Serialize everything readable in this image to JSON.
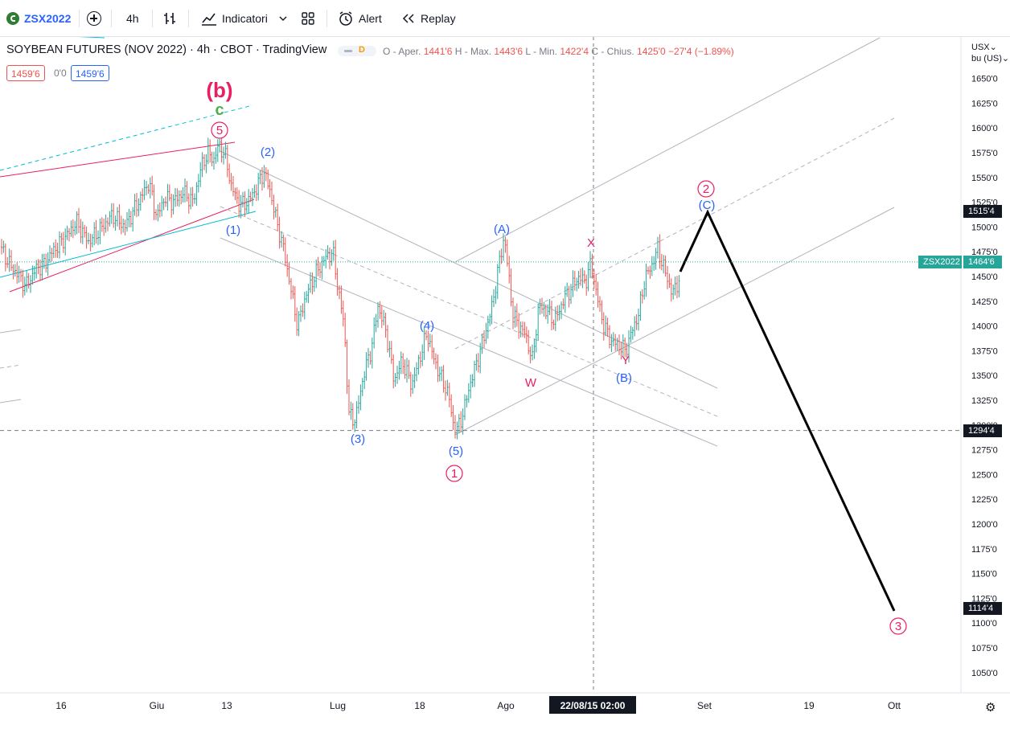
{
  "toolbar": {
    "symbol": "ZSX2022",
    "interval": "4h",
    "indicators_label": "Indicatori",
    "alert_label": "Alert",
    "replay_label": "Replay"
  },
  "legend": {
    "title": "SOYBEAN FUTURES (NOV 2022) · 4h · CBOT · TradingView",
    "flag": "D",
    "ohlc": {
      "open_label": "O - Aper.",
      "open": "1441'6",
      "high_label": "H - Max.",
      "high": "1443'6",
      "low_label": "L - Min.",
      "low": "1422'4",
      "close_label": "C - Chius.",
      "close": "1425'0",
      "change": "−27'4 (−1.89%)"
    },
    "bid": "1459'6",
    "spread": "0'0",
    "ask": "1459'6"
  },
  "currency": {
    "line1": "USX⌄",
    "line2": "bu (US)⌄"
  },
  "colors": {
    "up": "#26a69a",
    "down": "#ef5350",
    "blue": "#2962ff",
    "pink": "#e91e63",
    "green": "#4caf50",
    "teal": "#00bcd4",
    "accent_tag": "#26a69a"
  },
  "chart_data": {
    "type": "candlestick",
    "title": "SOYBEAN FUTURES (NOV 2022) · 4h · CBOT · TradingView",
    "y_ticks": [
      1650,
      1625,
      1600,
      1575,
      1550,
      1525,
      1500,
      1475,
      1450,
      1425,
      1400,
      1375,
      1350,
      1325,
      1300,
      1275,
      1250,
      1225,
      1200,
      1175,
      1150,
      1125,
      1100,
      1075,
      1050
    ],
    "y_tick_labels": [
      "1650'0",
      "1625'0",
      "1600'0",
      "1575'0",
      "1550'0",
      "1525'0",
      "1500'0",
      "1475'0",
      "1450'0",
      "1425'0",
      "1400'0",
      "1375'0",
      "1350'0",
      "1325'0",
      "1300'0",
      "1275'0",
      "1250'0",
      "1225'0",
      "1200'0",
      "1175'0",
      "1150'0",
      "1125'0",
      "1100'0",
      "1075'0",
      "1050'0"
    ],
    "ylim": [
      1030,
      1665
    ],
    "x_tick_labels": [
      "16",
      "Giu",
      "13",
      "Lug",
      "18",
      "Ago",
      "Set",
      "19",
      "Ott"
    ],
    "crosshair_time": "22/08/15  02:00",
    "price_labels": [
      {
        "label": "1515'4",
        "value": 1515.5,
        "style": "dark"
      },
      {
        "symbol": "ZSX2022",
        "label": "1464'6",
        "value": 1464.75,
        "style": "accent"
      },
      {
        "label": "1294'4",
        "value": 1294.5,
        "style": "dark"
      },
      {
        "label": "1114'4",
        "value": 1114.5,
        "style": "dark"
      }
    ],
    "price_path": [
      [
        0,
        1480
      ],
      [
        12,
        1462
      ],
      [
        22,
        1452
      ],
      [
        32,
        1440
      ],
      [
        45,
        1458
      ],
      [
        55,
        1462
      ],
      [
        65,
        1475
      ],
      [
        80,
        1488
      ],
      [
        95,
        1505
      ],
      [
        110,
        1485
      ],
      [
        125,
        1498
      ],
      [
        140,
        1512
      ],
      [
        155,
        1500
      ],
      [
        170,
        1522
      ],
      [
        185,
        1545
      ],
      [
        195,
        1510
      ],
      [
        205,
        1530
      ],
      [
        215,
        1525
      ],
      [
        228,
        1535
      ],
      [
        240,
        1525
      ],
      [
        250,
        1560
      ],
      [
        258,
        1575
      ],
      [
        266,
        1568
      ],
      [
        272,
        1583
      ],
      [
        280,
        1572
      ],
      [
        288,
        1540
      ],
      [
        298,
        1522
      ],
      [
        308,
        1525
      ],
      [
        318,
        1538
      ],
      [
        328,
        1556
      ],
      [
        336,
        1536
      ],
      [
        344,
        1505
      ],
      [
        352,
        1480
      ],
      [
        360,
        1445
      ],
      [
        370,
        1400
      ],
      [
        380,
        1430
      ],
      [
        392,
        1452
      ],
      [
        404,
        1468
      ],
      [
        414,
        1475
      ],
      [
        420,
        1440
      ],
      [
        428,
        1400
      ],
      [
        434,
        1310
      ],
      [
        442,
        1305
      ],
      [
        452,
        1350
      ],
      [
        462,
        1378
      ],
      [
        470,
        1420
      ],
      [
        480,
        1395
      ],
      [
        490,
        1345
      ],
      [
        500,
        1365
      ],
      [
        512,
        1340
      ],
      [
        522,
        1368
      ],
      [
        531,
        1393
      ],
      [
        540,
        1365
      ],
      [
        550,
        1345
      ],
      [
        558,
        1330
      ],
      [
        563,
        1303
      ],
      [
        568,
        1294
      ],
      [
        576,
        1312
      ],
      [
        584,
        1340
      ],
      [
        594,
        1366
      ],
      [
        604,
        1395
      ],
      [
        612,
        1420
      ],
      [
        620,
        1460
      ],
      [
        627,
        1491
      ],
      [
        632,
        1455
      ],
      [
        638,
        1410
      ],
      [
        646,
        1400
      ],
      [
        654,
        1390
      ],
      [
        662,
        1365
      ],
      [
        670,
        1420
      ],
      [
        680,
        1415
      ],
      [
        690,
        1405
      ],
      [
        700,
        1425
      ],
      [
        710,
        1438
      ],
      [
        720,
        1450
      ],
      [
        728,
        1444
      ],
      [
        735,
        1464
      ],
      [
        742,
        1432
      ],
      [
        750,
        1402
      ],
      [
        760,
        1385
      ],
      [
        770,
        1380
      ],
      [
        778,
        1375
      ],
      [
        786,
        1395
      ],
      [
        794,
        1412
      ],
      [
        802,
        1448
      ],
      [
        810,
        1460
      ],
      [
        818,
        1478
      ],
      [
        824,
        1462
      ],
      [
        830,
        1448
      ],
      [
        836,
        1432
      ],
      [
        842,
        1443
      ],
      [
        846,
        1448
      ]
    ],
    "projection": [
      [
        846,
        1448
      ],
      [
        880,
        1515.5
      ],
      [
        1112,
        1114.5
      ]
    ],
    "wave_labels": [
      {
        "text": "(b)",
        "color": "pink",
        "xy": [
          273,
          112
        ]
      },
      {
        "text": "c",
        "color": "green",
        "xy": [
          273,
          138
        ]
      },
      {
        "text": "5",
        "color": "pink",
        "circle": true,
        "xy": [
          273,
          162
        ]
      },
      {
        "text": "(2)",
        "color": "blue",
        "xy": [
          333,
          189
        ]
      },
      {
        "text": "(1)",
        "color": "blue",
        "xy": [
          290,
          286
        ]
      },
      {
        "text": "(3)",
        "color": "blue",
        "xy": [
          445,
          546
        ]
      },
      {
        "text": "(4)",
        "color": "blue",
        "xy": [
          531,
          405
        ]
      },
      {
        "text": "(5)",
        "color": "blue",
        "xy": [
          567,
          561
        ]
      },
      {
        "text": "1",
        "color": "pink",
        "circle": true,
        "xy": [
          565,
          589
        ]
      },
      {
        "text": "(A)",
        "color": "blue",
        "xy": [
          624,
          285
        ]
      },
      {
        "text": "W",
        "color": "pink",
        "xy": [
          660,
          476
        ]
      },
      {
        "text": "X",
        "color": "pink",
        "xy": [
          735,
          302
        ]
      },
      {
        "text": "Y",
        "color": "pink",
        "xy": [
          778,
          448
        ]
      },
      {
        "text": "(B)",
        "color": "blue",
        "xy": [
          776,
          470
        ]
      },
      {
        "text": "2",
        "color": "pink",
        "circle": true,
        "xy": [
          878,
          235
        ]
      },
      {
        "text": "(C)",
        "color": "blue",
        "xy": [
          879,
          255
        ]
      },
      {
        "text": "3",
        "color": "pink",
        "circle": true,
        "xy": [
          1117,
          779
        ]
      }
    ],
    "trend_lines": [
      {
        "from": [
          0,
          212
        ],
        "to": [
          314,
          131
        ],
        "color": "teal",
        "dash": true
      },
      {
        "from": [
          0,
          220
        ],
        "to": [
          292,
          177
        ],
        "color": "pink"
      },
      {
        "from": [
          12,
          363
        ],
        "to": [
          316,
          248
        ],
        "color": "pink"
      },
      {
        "from": [
          0,
          345
        ],
        "to": [
          318,
          263
        ],
        "color": "teal"
      },
      {
        "from": [
          274,
          188
        ],
        "to": [
          892,
          483
        ],
        "color": "grey"
      },
      {
        "from": [
          274,
          257
        ],
        "to": [
          892,
          518
        ],
        "color": "grey",
        "dash": true
      },
      {
        "from": [
          274,
          296
        ],
        "to": [
          892,
          555
        ],
        "color": "grey"
      },
      {
        "from": [
          566,
          326
        ],
        "to": [
          1094,
          47
        ],
        "color": "grey"
      },
      {
        "from": [
          566,
          434
        ],
        "to": [
          1112,
          147
        ],
        "color": "grey",
        "dash": true
      },
      {
        "from": [
          566,
          541
        ],
        "to": [
          1112,
          258
        ],
        "color": "grey"
      },
      {
        "from": [
          0,
          41
        ],
        "to": [
          130,
          47
        ],
        "color": "teal"
      },
      {
        "from": [
          0,
          414
        ],
        "to": [
          26,
          410
        ],
        "color": "grey"
      },
      {
        "from": [
          0,
          458
        ],
        "to": [
          26,
          454
        ],
        "color": "grey",
        "dash": true
      },
      {
        "from": [
          0,
          501
        ],
        "to": [
          26,
          497
        ],
        "color": "grey"
      }
    ]
  }
}
